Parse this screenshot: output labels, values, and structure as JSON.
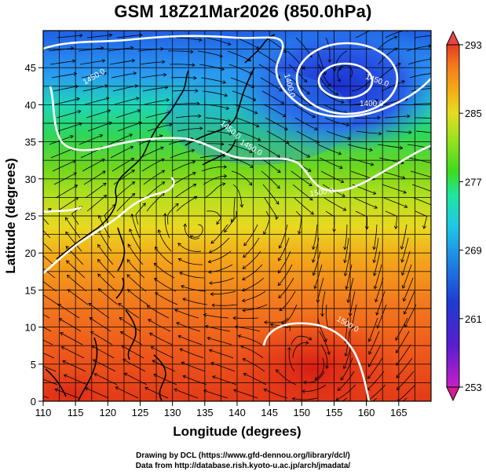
{
  "title": "GSM 18Z21Mar2026 (850.0hPa)",
  "x_axis": {
    "label": "Longitude (degrees)",
    "ticks": [
      "110",
      "115",
      "120",
      "125",
      "130",
      "135",
      "140",
      "145",
      "150",
      "155",
      "160",
      "165"
    ]
  },
  "y_axis": {
    "label": "Latitude (degrees)",
    "ticks": [
      "0",
      "5",
      "10",
      "15",
      "20",
      "25",
      "30",
      "35",
      "40",
      "45"
    ]
  },
  "colorbar": {
    "ticks": [
      "293",
      "285",
      "277",
      "269",
      "261",
      "253"
    ],
    "colors": [
      "#d21e6e",
      "#c81ec8",
      "#5a1ecf",
      "#1e3cd2",
      "#1e8ce6",
      "#1ec8e6",
      "#1ee6a0",
      "#3cdc1e",
      "#96e11e",
      "#e6dc1e",
      "#f5aa14",
      "#f5781e",
      "#e63c1e",
      "#d21e1e"
    ]
  },
  "contours": [
    {
      "label": "1400.0"
    },
    {
      "label": "1450.0"
    },
    {
      "label": "1450.0"
    },
    {
      "label": "1450.0"
    },
    {
      "label": "1500.0"
    },
    {
      "label": "1500.0"
    },
    {
      "label": "1400.0"
    },
    {
      "label": "1450.0"
    }
  ],
  "footer": {
    "line1": "Drawing by DCL (https://www.gfd-dennou.org/library/dcl/)",
    "line2": "Data from http://database.rish.kyoto-u.ac.jp/arch/jmadata/"
  }
}
